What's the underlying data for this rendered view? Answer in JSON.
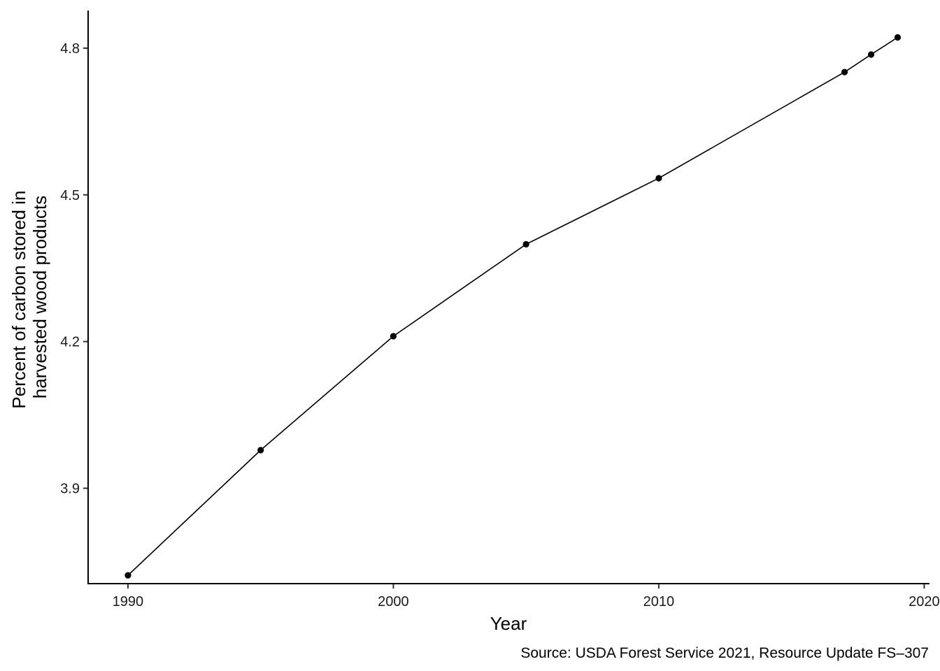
{
  "chart_data": {
    "type": "line",
    "title": "",
    "xlabel": "Year",
    "ylabel": [
      "Percent of carbon stored in",
      "harvested wood products"
    ],
    "caption": "Source: USDA Forest Service 2021, Resource Update FS–307",
    "xlim": [
      1988.5,
      2020.2
    ],
    "ylim": [
      3.705,
      4.877
    ],
    "x_ticks": [
      1990,
      2000,
      2010,
      2020
    ],
    "y_ticks": [
      3.9,
      4.2,
      4.5,
      4.8
    ],
    "x_tick_labels": [
      "1990",
      "2000",
      "2010",
      "2020"
    ],
    "y_tick_labels": [
      "3.9",
      "4.2",
      "4.5",
      "4.8"
    ],
    "grid": false,
    "legend": "none",
    "series": [
      {
        "color": "#000000",
        "x": [
          1990,
          1995,
          2000,
          2005,
          2010,
          2017,
          2018,
          2019
        ],
        "y": [
          3.722,
          3.978,
          4.211,
          4.399,
          4.534,
          4.751,
          4.787,
          4.822
        ]
      }
    ]
  }
}
